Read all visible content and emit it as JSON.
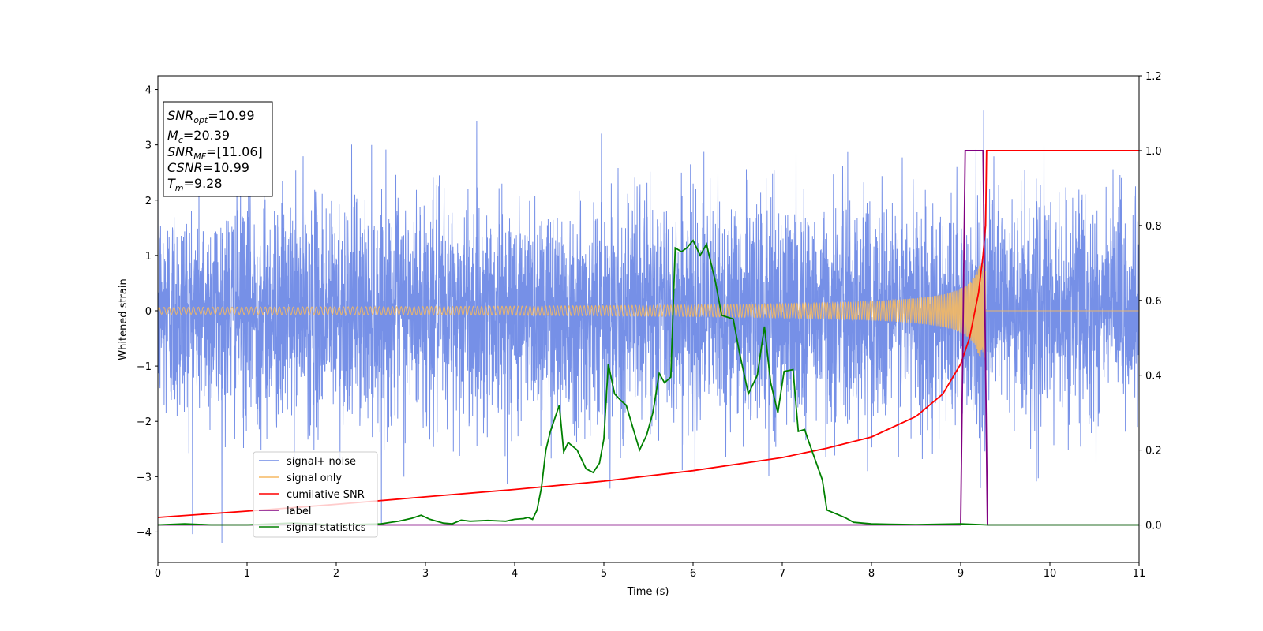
{
  "chart_data": {
    "type": "line",
    "xlabel": "Time (s)",
    "ylabel": "Whitened strain",
    "xlim": [
      0,
      11
    ],
    "ylim": [
      -4.55,
      4.25
    ],
    "y2lim": [
      -0.1,
      1.2
    ],
    "x_ticks": [
      "0",
      "1",
      "2",
      "3",
      "4",
      "5",
      "6",
      "7",
      "8",
      "9",
      "10",
      "11"
    ],
    "y_ticks": [
      "4",
      "3",
      "2",
      "1",
      "0",
      "−1",
      "−2",
      "−3",
      "−4"
    ],
    "y2_ticks": [
      "1.2",
      "1.0",
      "0.8",
      "0.6",
      "0.4",
      "0.2",
      "0.0"
    ],
    "grid": false,
    "legend_position": "lower-left",
    "colors": {
      "noise": "#6f8ae6",
      "signal": "#f5b962",
      "csnr": "#ff0000",
      "label": "#800080",
      "stats": "#008000"
    },
    "legend": [
      {
        "label": "signal+ noise",
        "color": "#6f8ae6"
      },
      {
        "label": "signal only",
        "color": "#f5b962"
      },
      {
        "label": "cumilative SNR",
        "color": "#ff0000"
      },
      {
        "label": "label",
        "color": "#800080"
      },
      {
        "label": "signal statistics",
        "color": "#008000"
      }
    ],
    "annotation": {
      "snr_opt": "=10.99",
      "mc": "=20.39",
      "snr_mf": "=[11.06]",
      "csnr": "=10.99",
      "tm": "=9.28"
    },
    "series": [
      {
        "name": "signal+ noise",
        "axis": "left",
        "description_values": "whitened noise, approximately Gaussian with sigma≈1, range about -4.2 to 3.85"
      },
      {
        "name": "signal only",
        "axis": "left",
        "chirp": {
          "start_amplitude": 0.02,
          "peak_amplitude": 0.85,
          "merger_time": 9.28
        }
      },
      {
        "name": "cumilative SNR",
        "axis": "right",
        "x": [
          0,
          1,
          2,
          3,
          4,
          5,
          6,
          7,
          7.5,
          8,
          8.5,
          8.8,
          9.0,
          9.1,
          9.2,
          9.25,
          9.28,
          9.29,
          11
        ],
        "y": [
          0.02,
          0.037,
          0.055,
          0.075,
          0.095,
          0.117,
          0.145,
          0.18,
          0.205,
          0.235,
          0.29,
          0.35,
          0.43,
          0.5,
          0.62,
          0.72,
          0.8,
          1.0,
          1.0
        ]
      },
      {
        "name": "label",
        "axis": "right",
        "x": [
          0,
          9.0,
          9.05,
          9.25,
          9.3,
          11
        ],
        "y": [
          0,
          0,
          1.0,
          1.0,
          0,
          0
        ]
      },
      {
        "name": "signal statistics",
        "axis": "right",
        "x": [
          0,
          0.3,
          0.6,
          1.0,
          1.5,
          2.0,
          2.5,
          2.7,
          2.85,
          2.95,
          3.05,
          3.2,
          3.3,
          3.4,
          3.5,
          3.7,
          3.9,
          4.0,
          4.1,
          4.15,
          4.2,
          4.25,
          4.3,
          4.35,
          4.4,
          4.5,
          4.55,
          4.6,
          4.7,
          4.8,
          4.88,
          4.95,
          5.0,
          5.05,
          5.12,
          5.2,
          5.25,
          5.3,
          5.4,
          5.48,
          5.55,
          5.62,
          5.68,
          5.75,
          5.8,
          5.87,
          5.93,
          6.0,
          6.08,
          6.15,
          6.25,
          6.32,
          6.45,
          6.52,
          6.62,
          6.72,
          6.8,
          6.87,
          6.95,
          7.02,
          7.12,
          7.18,
          7.25,
          7.3,
          7.45,
          7.5,
          7.6,
          7.7,
          7.8,
          7.9,
          8.0,
          8.2,
          8.5,
          9.0,
          9.3,
          11
        ],
        "y": [
          0.0,
          0.003,
          0.0,
          0.0,
          0.005,
          0.0,
          0.003,
          0.01,
          0.018,
          0.026,
          0.015,
          0.005,
          0.003,
          0.013,
          0.01,
          0.012,
          0.01,
          0.015,
          0.017,
          0.02,
          0.015,
          0.04,
          0.1,
          0.2,
          0.25,
          0.32,
          0.195,
          0.22,
          0.2,
          0.15,
          0.14,
          0.165,
          0.23,
          0.43,
          0.35,
          0.33,
          0.32,
          0.28,
          0.2,
          0.24,
          0.3,
          0.405,
          0.38,
          0.395,
          0.74,
          0.73,
          0.74,
          0.76,
          0.72,
          0.75,
          0.65,
          0.56,
          0.55,
          0.46,
          0.35,
          0.4,
          0.53,
          0.38,
          0.3,
          0.41,
          0.415,
          0.25,
          0.255,
          0.22,
          0.12,
          0.04,
          0.03,
          0.02,
          0.007,
          0.005,
          0.003,
          0.002,
          0.001,
          0.003,
          0.0,
          0.0
        ]
      }
    ]
  }
}
